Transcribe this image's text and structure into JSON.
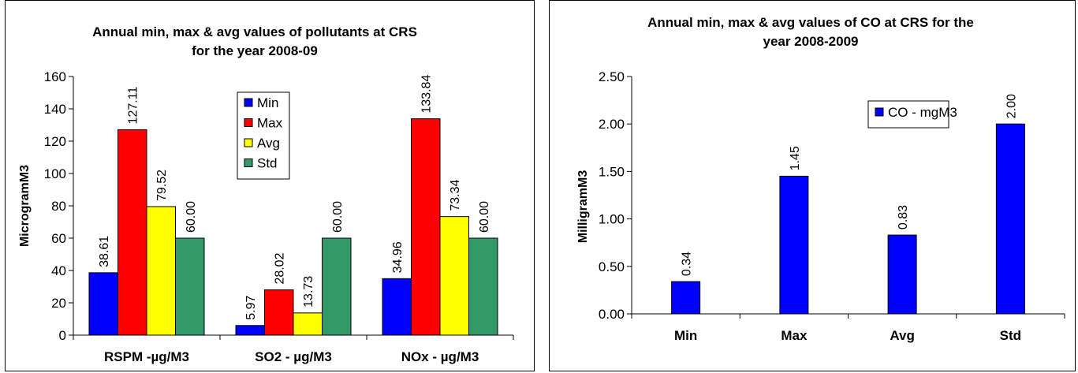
{
  "chart_data": [
    {
      "type": "bar",
      "title": [
        "Annual min, max & avg values of pollutants at CRS",
        "for the year 2008-09"
      ],
      "xlabel": "",
      "ylabel": "MicrogramM3",
      "ylim": [
        0,
        160
      ],
      "yticks": [
        "0",
        "20",
        "40",
        "60",
        "80",
        "100",
        "120",
        "140",
        "160"
      ],
      "categories": [
        "RSPM -µg/M3",
        "SO2 - µg/M3",
        "NOx - µg/M3"
      ],
      "legend_position": "top-right",
      "series": [
        {
          "name": "Min",
          "color": "#0000ff",
          "values": [
            38.61,
            5.97,
            34.96
          ],
          "labels": [
            "38.61",
            "5.97",
            "34.96"
          ]
        },
        {
          "name": "Max",
          "color": "#ff0000",
          "values": [
            127.11,
            28.02,
            133.84
          ],
          "labels": [
            "127.11",
            "28.02",
            "133.84"
          ]
        },
        {
          "name": "Avg",
          "color": "#ffff00",
          "values": [
            79.52,
            13.73,
            73.34
          ],
          "labels": [
            "79.52",
            "13.73",
            "73.34"
          ]
        },
        {
          "name": "Std",
          "color": "#339966",
          "values": [
            60.0,
            60.0,
            60.0
          ],
          "labels": [
            "60.00",
            "60.00",
            "60.00"
          ]
        }
      ]
    },
    {
      "type": "bar",
      "title": [
        "Annual min, max & avg values of CO at CRS for the",
        "year 2008-2009"
      ],
      "xlabel": "",
      "ylabel": "MilligramM3",
      "ylim": [
        0,
        2.5
      ],
      "yticks": [
        "0.00",
        "0.50",
        "1.00",
        "1.50",
        "2.00",
        "2.50"
      ],
      "categories": [
        "Min",
        "Max",
        "Avg",
        "Std"
      ],
      "legend_position": "top-right",
      "series": [
        {
          "name": "CO - mgM3",
          "color": "#0000ff",
          "values": [
            0.34,
            1.45,
            0.83,
            2.0
          ],
          "labels": [
            "0.34",
            "1.45",
            "0.83",
            "2.00"
          ]
        }
      ]
    }
  ]
}
